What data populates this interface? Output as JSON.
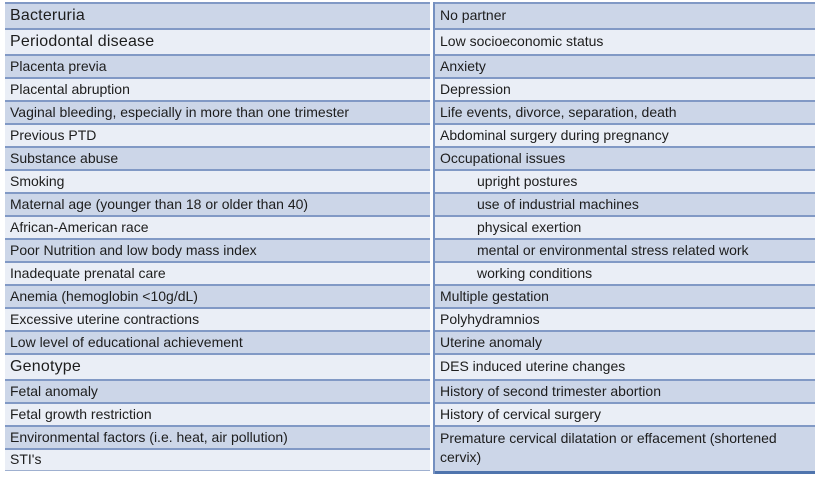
{
  "table": {
    "description": "Two-column table of risk factors, alternating blue and white shaded rows, no header row",
    "colors": {
      "row_blue": "#ccd6e8",
      "row_light": "#eaeef6",
      "grid_line": "#8199c5",
      "column_divider": "#7590c0",
      "bottom_border": "#4f74ad",
      "text": "#1d1d1d",
      "page_background": "#ffffff"
    },
    "left_column": [
      "Bacteruria",
      "Periodontal disease",
      "Placenta previa",
      "Placental abruption",
      "Vaginal bleeding, especially in more than one trimester",
      "Previous PTD",
      "Substance abuse",
      "Smoking",
      "Maternal age (younger than 18 or older than 40)",
      "African-American race",
      "Poor Nutrition and low body mass index",
      "Inadequate prenatal care",
      "Anemia (hemoglobin <10g/dL)",
      "Excessive uterine contractions",
      "Low level of educational achievement",
      "Genotype",
      "Fetal anomaly",
      "Fetal growth restriction",
      "Environmental factors (i.e. heat, air pollution)",
      "STI's"
    ],
    "right_column": [
      "No partner",
      "Low socioeconomic status",
      "Anxiety",
      "Depression",
      "Life events, divorce, separation, death",
      "Abdominal surgery during pregnancy",
      "Occupational issues",
      "upright postures",
      "use of industrial machines",
      "physical exertion",
      "mental  or environmental stress related work",
      "working conditions",
      "Multiple gestation",
      "Polyhydramnios",
      "Uterine anomaly",
      "DES induced uterine changes",
      "History of second trimester abortion",
      "History of cervical surgery",
      "Premature cervical dilatation or effacement (shortened cervix)"
    ]
  }
}
